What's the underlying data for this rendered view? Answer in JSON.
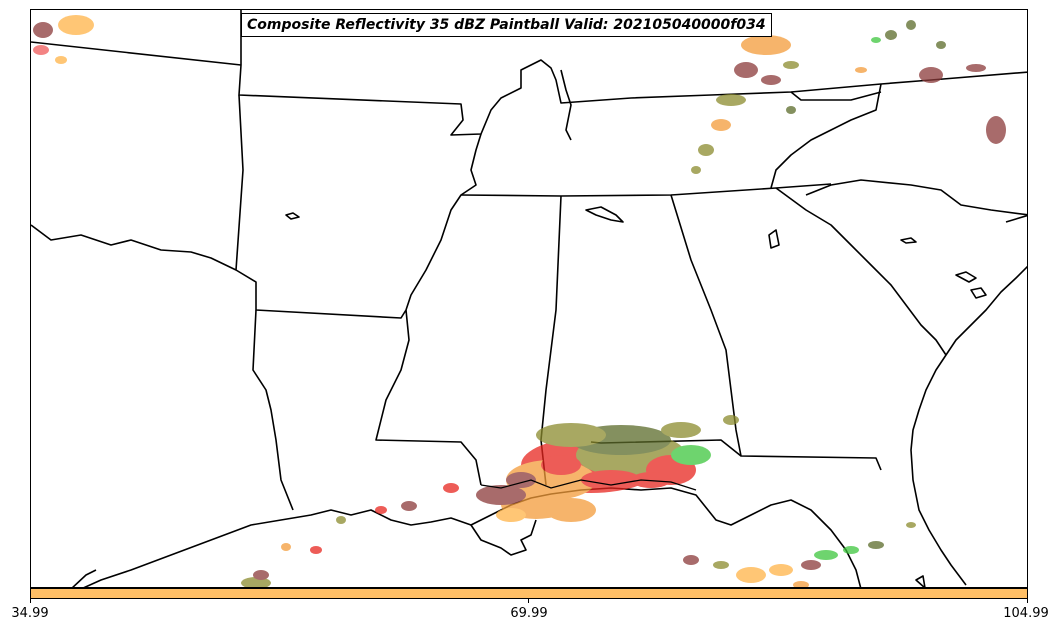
{
  "title": "Composite Reflectivity 35 dBZ Paintball Valid: 202105040000f034",
  "colorbar": {
    "color": "#ffbf66",
    "ticks": [
      "34.99",
      "69.99",
      "104.99"
    ]
  },
  "palette": {
    "red": "#e8261f",
    "orange": "#f39c3a",
    "light_orange": "#ffb347",
    "olive": "#8b8b2e",
    "dark_olive": "#5c6b2a",
    "green": "#3ec63e",
    "maroon": "#8b3a3a",
    "dark_gray": "#4f4f4f",
    "salmon": "#f05a5a",
    "coast_line": "#000000"
  }
}
